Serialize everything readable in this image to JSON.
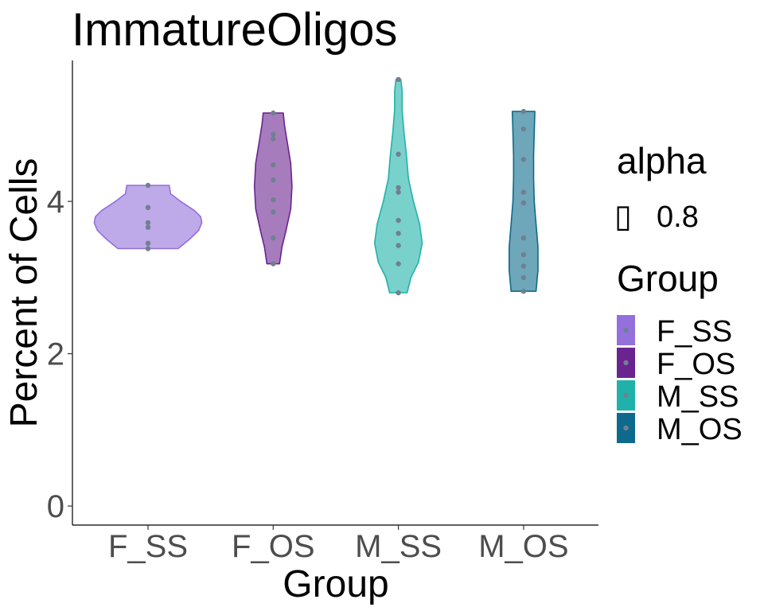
{
  "chart_data": {
    "type": "violin",
    "title": "ImmatureOligos",
    "xlabel": "Group",
    "ylabel": "Percent of Cells",
    "ylim": [
      -0.25,
      5.85
    ],
    "yticks": [
      0,
      2,
      4
    ],
    "categories": [
      "F_SS",
      "F_OS",
      "M_SS",
      "M_OS"
    ],
    "colors": {
      "F_SS": "#9370DB",
      "F_OS": "#6A2490",
      "M_SS": "#20B2AA",
      "M_OS": "#0E6A8C",
      "points": "#708090"
    },
    "fill_alpha": 0.8,
    "series": [
      {
        "group": "F_SS",
        "values": [
          4.21,
          3.92,
          3.72,
          3.66,
          3.45,
          3.38
        ]
      },
      {
        "group": "F_OS",
        "values": [
          5.16,
          4.88,
          4.82,
          4.48,
          4.28,
          4.02,
          3.86,
          3.52,
          3.18
        ]
      },
      {
        "group": "M_SS",
        "values": [
          5.6,
          4.62,
          4.18,
          4.12,
          3.75,
          3.58,
          3.42,
          3.18,
          2.8
        ]
      },
      {
        "group": "M_OS",
        "values": [
          5.18,
          4.95,
          4.55,
          4.12,
          3.98,
          3.52,
          3.3,
          3.15,
          3.0,
          2.82
        ]
      }
    ],
    "violins": [
      {
        "group": "F_SS",
        "y": [
          3.38,
          3.5,
          3.62,
          3.72,
          3.8,
          3.88,
          4.0,
          4.1,
          4.21
        ],
        "halfwidth": [
          0.24,
          0.33,
          0.405,
          0.43,
          0.42,
          0.37,
          0.26,
          0.18,
          0.17
        ]
      },
      {
        "group": "F_OS",
        "y": [
          3.18,
          3.4,
          3.6,
          3.9,
          4.2,
          4.5,
          4.8,
          5.0,
          5.16
        ],
        "halfwidth": [
          0.05,
          0.07,
          0.1,
          0.14,
          0.15,
          0.14,
          0.11,
          0.09,
          0.08
        ]
      },
      {
        "group": "M_SS",
        "y": [
          2.8,
          3.0,
          3.2,
          3.45,
          3.7,
          4.0,
          4.3,
          4.6,
          4.9,
          5.2,
          5.45,
          5.6
        ],
        "halfwidth": [
          0.07,
          0.1,
          0.16,
          0.19,
          0.17,
          0.12,
          0.08,
          0.065,
          0.045,
          0.03,
          0.03,
          0.02
        ]
      },
      {
        "group": "M_OS",
        "y": [
          2.82,
          3.1,
          3.4,
          3.7,
          4.0,
          4.3,
          4.6,
          4.9,
          5.18
        ],
        "halfwidth": [
          0.1,
          0.115,
          0.115,
          0.1,
          0.085,
          0.08,
          0.08,
          0.085,
          0.09
        ]
      }
    ]
  },
  "legend": {
    "alpha_title": "alpha",
    "alpha_value": "0.8",
    "alpha_glyph": "▯",
    "group_title": "Group",
    "items": [
      {
        "label": "F_SS",
        "color": "#9370DB"
      },
      {
        "label": "F_OS",
        "color": "#6A2490"
      },
      {
        "label": "M_SS",
        "color": "#20B2AA"
      },
      {
        "label": "M_OS",
        "color": "#0E6A8C"
      }
    ]
  }
}
